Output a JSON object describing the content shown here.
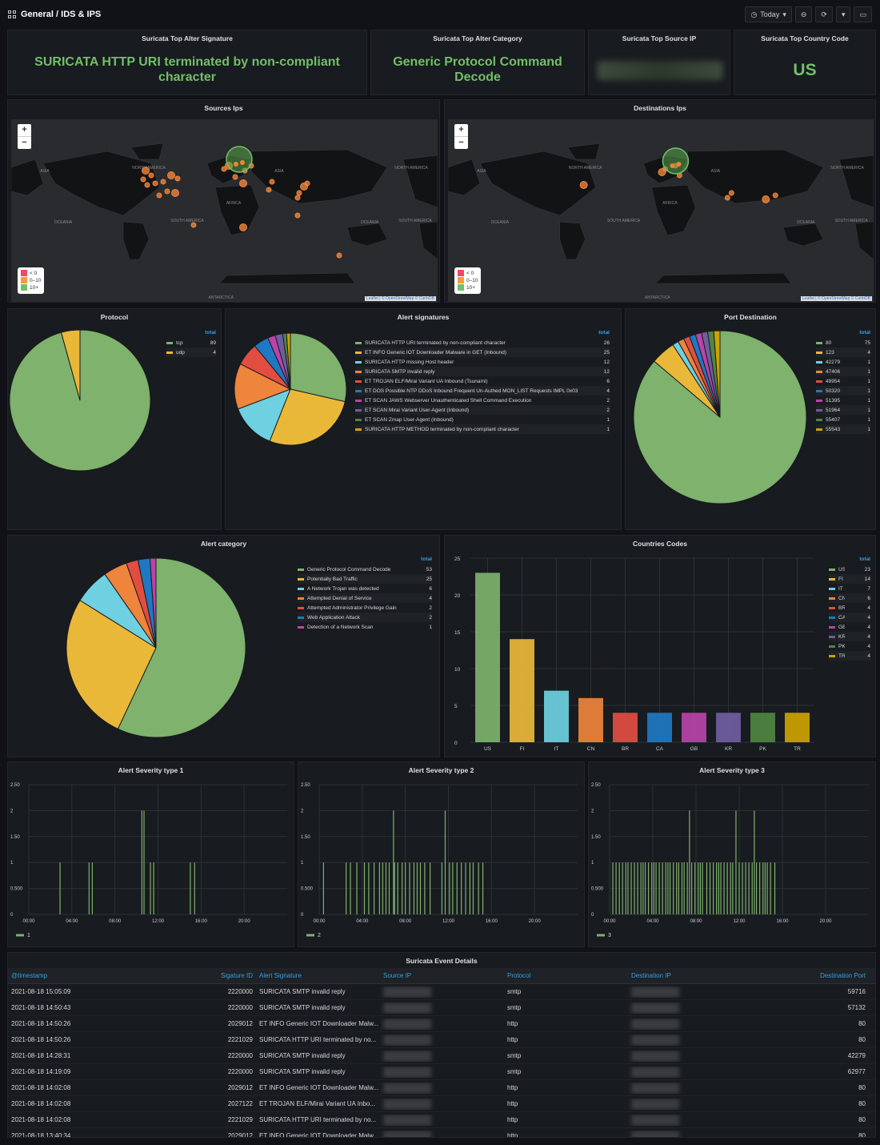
{
  "header": {
    "breadcrumb": "General / IDS & IPS",
    "time_range": "Today"
  },
  "stats": {
    "top_signature": {
      "title": "Suricata Top Alter Signature",
      "value": "SURICATA HTTP URI terminated by non-compliant character"
    },
    "top_category": {
      "title": "Suricata Top Alter Category",
      "value": "Generic Protocol Command Decode"
    },
    "top_source_ip": {
      "title": "Suricata Top Source IP"
    },
    "top_country": {
      "title": "Suricata Top Country Code",
      "value": "US"
    }
  },
  "maps": {
    "sources_title": "Sources Ips",
    "destinations_title": "Destinations Ips",
    "legend": [
      "< 0",
      "0–10",
      "10+"
    ],
    "attribution": "Leaflet | © OpenStreetMap © CartoDB",
    "labels": [
      "NORTH AMERICA",
      "ASIA",
      "AFRICA",
      "SOUTH AMERICA",
      "OCEANIA",
      "ANTARCTICA"
    ]
  },
  "colors": {
    "green": "#7eb26d",
    "yellow": "#eab839",
    "cyan": "#6ed0e0",
    "orange": "#ef843c",
    "red": "#e24d42",
    "blue": "#1f78c1",
    "pink": "#ba43a9",
    "purple": "#705da0",
    "dkgreen": "#508642",
    "gold": "#cca300"
  },
  "chart_data": [
    {
      "id": "protocol",
      "type": "pie",
      "title": "Protocol",
      "legend_header": "total",
      "series": [
        {
          "name": "tcp",
          "value": 89,
          "color": "#7eb26d"
        },
        {
          "name": "udp",
          "value": 4,
          "color": "#eab839"
        }
      ]
    },
    {
      "id": "signatures",
      "type": "pie",
      "title": "Alert signatures",
      "legend_header": "total",
      "series": [
        {
          "name": "SURICATA HTTP URI terminated by non-compliant character",
          "value": 26,
          "color": "#7eb26d"
        },
        {
          "name": "ET INFO Generic IOT Downloader Malware in GET (Inbound)",
          "value": 25,
          "color": "#eab839"
        },
        {
          "name": "SURICATA HTTP missing Host header",
          "value": 12,
          "color": "#6ed0e0"
        },
        {
          "name": "SURICATA SMTP invalid reply",
          "value": 12,
          "color": "#ef843c"
        },
        {
          "name": "ET TROJAN ELF/Mirai Variant UA Inbound (Tsunami)",
          "value": 6,
          "color": "#e24d42"
        },
        {
          "name": "ET DOS Possible NTP DDoS Inbound Frequent Un-Authed MON_LIST Requests IMPL 0x03",
          "value": 4,
          "color": "#1f78c1"
        },
        {
          "name": "ET SCAN JAWS Webserver Unauthenticated Shell Command Execution",
          "value": 2,
          "color": "#ba43a9"
        },
        {
          "name": "ET SCAN Mirai Variant User-Agent (Inbound)",
          "value": 2,
          "color": "#705da0"
        },
        {
          "name": "ET SCAN Zmap User-Agent (Inbound)",
          "value": 1,
          "color": "#508642"
        },
        {
          "name": "SURICATA HTTP METHOD terminated by non-compliant character",
          "value": 1,
          "color": "#cca300"
        }
      ]
    },
    {
      "id": "ports",
      "type": "pie",
      "title": "Port Destination",
      "legend_header": "total",
      "series": [
        {
          "name": "80",
          "value": 75,
          "color": "#7eb26d"
        },
        {
          "name": "123",
          "value": 4,
          "color": "#eab839"
        },
        {
          "name": "42279",
          "value": 1,
          "color": "#6ed0e0"
        },
        {
          "name": "47406",
          "value": 1,
          "color": "#ef843c"
        },
        {
          "name": "49954",
          "value": 1,
          "color": "#e24d42"
        },
        {
          "name": "50320",
          "value": 1,
          "color": "#1f78c1"
        },
        {
          "name": "51395",
          "value": 1,
          "color": "#ba43a9"
        },
        {
          "name": "51964",
          "value": 1,
          "color": "#705da0"
        },
        {
          "name": "55407",
          "value": 1,
          "color": "#508642"
        },
        {
          "name": "55543",
          "value": 1,
          "color": "#cca300"
        }
      ]
    },
    {
      "id": "category",
      "type": "pie",
      "title": "Alert category",
      "legend_header": "total",
      "series": [
        {
          "name": "Generic Protocol Command Decode",
          "value": 53,
          "color": "#7eb26d"
        },
        {
          "name": "Potentially Bad Traffic",
          "value": 25,
          "color": "#eab839"
        },
        {
          "name": "A Network Trojan was detected",
          "value": 6,
          "color": "#6ed0e0"
        },
        {
          "name": "Attempted Denial of Service",
          "value": 4,
          "color": "#ef843c"
        },
        {
          "name": "Attempted Administrator Privilege Gain",
          "value": 2,
          "color": "#e24d42"
        },
        {
          "name": "Web Application Attack",
          "value": 2,
          "color": "#1f78c1"
        },
        {
          "name": "Detection of a Network Scan",
          "value": 1,
          "color": "#ba43a9"
        }
      ]
    },
    {
      "id": "countries",
      "type": "bar",
      "title": "Countries Codes",
      "legend_header": "total",
      "ylim": [
        0,
        25
      ],
      "yticks": [
        0,
        5,
        10,
        15,
        20,
        25
      ],
      "categories": [
        "US",
        "FI",
        "IT",
        "CN",
        "BR",
        "CA",
        "GB",
        "KR",
        "PK",
        "TR"
      ],
      "values": [
        23,
        14,
        7,
        6,
        4,
        4,
        4,
        4,
        4,
        4
      ],
      "colors": [
        "#7eb26d",
        "#eab839",
        "#6ed0e0",
        "#ef843c",
        "#e24d42",
        "#1f78c1",
        "#ba43a9",
        "#705da0",
        "#508642",
        "#cca300"
      ]
    },
    {
      "id": "sev1",
      "type": "bar",
      "title": "Alert Severity type 1",
      "series_name": "1",
      "ylim": [
        0,
        2.5
      ],
      "yticks": [
        "0",
        "0.500",
        "1",
        "1.50",
        "2",
        "2.50"
      ],
      "xticks": [
        "00:00",
        "04:00",
        "08:00",
        "12:00",
        "16:00",
        "20:00"
      ],
      "x": [
        2.9,
        5.6,
        5.9,
        10.5,
        10.7,
        11.3,
        11.6,
        15.0,
        15.4
      ],
      "values": [
        1,
        1,
        1,
        2,
        2,
        1,
        1,
        1,
        1
      ]
    },
    {
      "id": "sev2",
      "type": "bar",
      "title": "Alert Severity type 2",
      "series_name": "2",
      "ylim": [
        0,
        2.5
      ],
      "yticks": [
        "0",
        "0.500",
        "1",
        "1.50",
        "2",
        "2.50"
      ],
      "xticks": [
        "00:00",
        "04:00",
        "08:00",
        "12:00",
        "16:00",
        "20:00"
      ],
      "x": [
        0.4,
        2.5,
        2.9,
        3.5,
        4.2,
        4.6,
        5.1,
        5.6,
        5.9,
        6.2,
        6.5,
        6.9,
        7.0,
        7.3,
        7.7,
        8.0,
        8.4,
        8.8,
        9.1,
        9.4,
        9.8,
        10.3,
        11.4,
        11.7,
        12.1,
        12.4,
        12.8,
        13.2,
        13.6,
        14.0,
        14.3,
        14.8,
        15.2
      ],
      "values": [
        1,
        1,
        1,
        1,
        1,
        1,
        1,
        1,
        1,
        1,
        1,
        2,
        1,
        1,
        1,
        1,
        1,
        1,
        1,
        1,
        1,
        1,
        1,
        2,
        1,
        1,
        1,
        1,
        1,
        1,
        1,
        1,
        1
      ]
    },
    {
      "id": "sev3",
      "type": "bar",
      "title": "Alert Severity type 3",
      "series_name": "3",
      "ylim": [
        0,
        2.5
      ],
      "yticks": [
        "0",
        "0.500",
        "1",
        "1.50",
        "2",
        "2.50"
      ],
      "xticks": [
        "00:00",
        "04:00",
        "08:00",
        "12:00",
        "16:00",
        "20:00"
      ],
      "x": [
        0.3,
        0.6,
        0.9,
        1.2,
        1.5,
        1.7,
        2.0,
        2.3,
        2.6,
        2.9,
        3.1,
        3.3,
        3.6,
        3.9,
        4.1,
        4.3,
        4.6,
        4.9,
        5.2,
        5.4,
        5.6,
        5.9,
        6.2,
        6.4,
        6.7,
        6.9,
        7.2,
        7.4,
        7.6,
        7.9,
        8.2,
        8.4,
        8.6,
        9.0,
        9.3,
        9.6,
        9.9,
        10.1,
        10.3,
        10.6,
        10.9,
        11.2,
        11.4,
        11.7,
        12.0,
        12.3,
        12.6,
        12.9,
        13.2,
        13.4,
        13.6,
        13.9,
        14.2,
        14.4,
        14.6,
        14.9,
        15.3
      ],
      "values": [
        1,
        1,
        1,
        1,
        1,
        1,
        1,
        1,
        1,
        1,
        1,
        1,
        1,
        1,
        1,
        1,
        1,
        1,
        1,
        1,
        1,
        1,
        1,
        1,
        1,
        1,
        1,
        2,
        1,
        1,
        1,
        1,
        1,
        1,
        1,
        1,
        1,
        1,
        1,
        1,
        1,
        1,
        1,
        2,
        1,
        1,
        1,
        1,
        1,
        2,
        1,
        1,
        1,
        1,
        1,
        1,
        1
      ]
    }
  ],
  "table": {
    "title": "Suricata Event Details",
    "columns": [
      "@timestamp",
      "Sigature ID",
      "Alert Signature",
      "Source IP",
      "Protocol",
      "Destination IP",
      "Destination Port"
    ],
    "rows": [
      [
        "2021-08-18 15:05:09",
        "2220000",
        "SURICATA SMTP invalid reply",
        "smtp",
        "59716"
      ],
      [
        "2021-08-18 14:50:43",
        "2220000",
        "SURICATA SMTP invalid reply",
        "smtp",
        "57132"
      ],
      [
        "2021-08-18 14:50:26",
        "2029012",
        "ET INFO Generic IOT Downloader Malw...",
        "http",
        "80"
      ],
      [
        "2021-08-18 14:50:26",
        "2221029",
        "SURICATA HTTP URI terminated by no...",
        "http",
        "80"
      ],
      [
        "2021-08-18 14:28:31",
        "2220000",
        "SURICATA SMTP invalid reply",
        "smtp",
        "42279"
      ],
      [
        "2021-08-18 14:19:09",
        "2220000",
        "SURICATA SMTP invalid reply",
        "smtp",
        "62977"
      ],
      [
        "2021-08-18 14:02:08",
        "2029012",
        "ET INFO Generic IOT Downloader Malw...",
        "http",
        "80"
      ],
      [
        "2021-08-18 14:02:08",
        "2027122",
        "ET TROJAN ELF/Mirai Variant UA Inbo...",
        "http",
        "80"
      ],
      [
        "2021-08-18 14:02:08",
        "2221029",
        "SURICATA HTTP URI terminated by no...",
        "http",
        "80"
      ],
      [
        "2021-08-18 13:40:34",
        "2029012",
        "ET INFO Generic IOT Downloader Malw...",
        "http",
        "80"
      ]
    ]
  }
}
